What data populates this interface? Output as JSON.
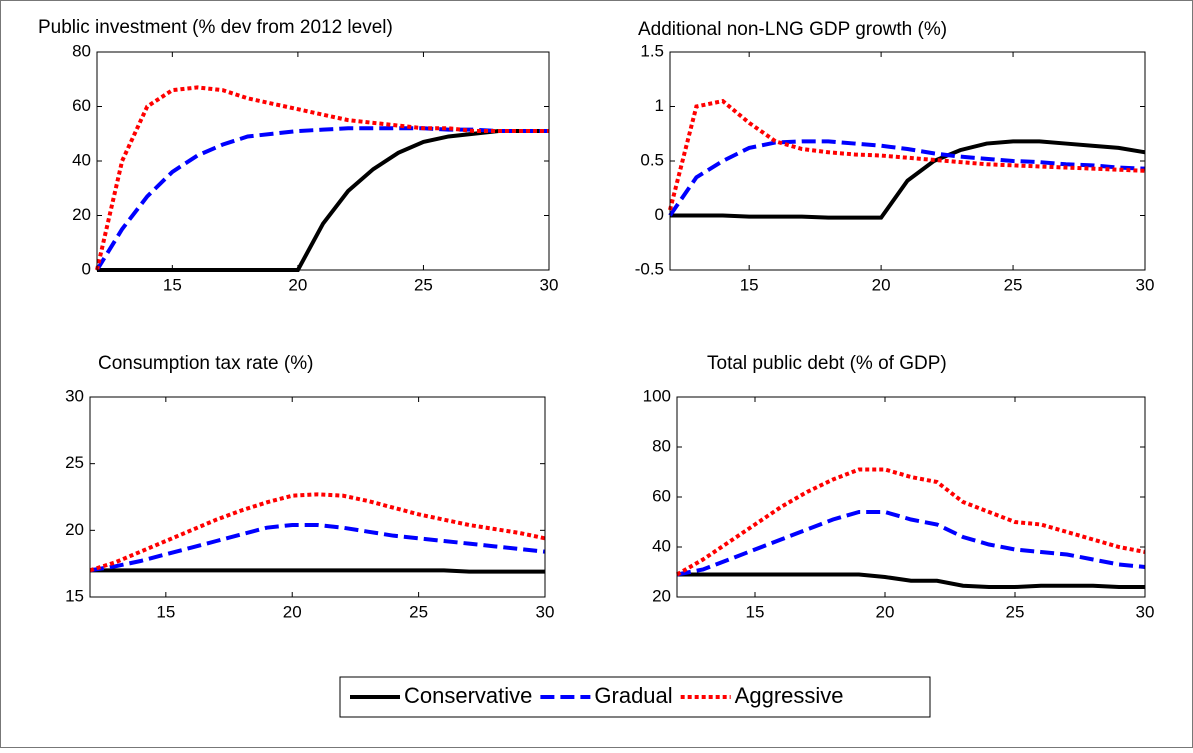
{
  "chart_data": [
    {
      "type": "line",
      "title": "Public investment (% dev from 2012 level)",
      "x": [
        12,
        13,
        14,
        15,
        16,
        17,
        18,
        19,
        20,
        21,
        22,
        23,
        24,
        25,
        26,
        27,
        28,
        29,
        30
      ],
      "xlim": [
        12,
        30
      ],
      "xticks": [
        15,
        20,
        25,
        30
      ],
      "ylim": [
        0,
        80
      ],
      "yticks": [
        0,
        20,
        40,
        60,
        80
      ],
      "series": [
        {
          "name": "Conservative",
          "color": "#000000",
          "style": "solid",
          "values": [
            0,
            0,
            0,
            0,
            0,
            0,
            0,
            0,
            0,
            17,
            29,
            37,
            43,
            47,
            49,
            50,
            51,
            51,
            51
          ]
        },
        {
          "name": "Gradual",
          "color": "#0000ff",
          "style": "dashed",
          "values": [
            0,
            15,
            27,
            36,
            42,
            46,
            49,
            50,
            51,
            51.5,
            52,
            52,
            52,
            52,
            51.5,
            51.5,
            51,
            51,
            51
          ]
        },
        {
          "name": "Aggressive",
          "color": "#ff0000",
          "style": "dotted",
          "values": [
            0,
            40,
            60,
            66,
            67,
            66,
            63,
            61,
            59,
            57,
            55,
            54,
            53,
            52,
            52,
            51,
            51,
            51,
            51
          ]
        }
      ]
    },
    {
      "type": "line",
      "title": "Additional non-LNG GDP growth (%)",
      "x": [
        12,
        13,
        14,
        15,
        16,
        17,
        18,
        19,
        20,
        21,
        22,
        23,
        24,
        25,
        26,
        27,
        28,
        29,
        30
      ],
      "xlim": [
        12,
        30
      ],
      "xticks": [
        15,
        20,
        25,
        30
      ],
      "ylim": [
        -0.5,
        1.5
      ],
      "yticks": [
        -0.5,
        0,
        0.5,
        1,
        1.5
      ],
      "series": [
        {
          "name": "Conservative",
          "color": "#000000",
          "style": "solid",
          "values": [
            0,
            0,
            0,
            -0.01,
            -0.01,
            -0.01,
            -0.02,
            -0.02,
            -0.02,
            0.32,
            0.5,
            0.6,
            0.66,
            0.68,
            0.68,
            0.66,
            0.64,
            0.62,
            0.58
          ]
        },
        {
          "name": "Gradual",
          "color": "#0000ff",
          "style": "dashed",
          "values": [
            0,
            0.35,
            0.5,
            0.62,
            0.67,
            0.68,
            0.68,
            0.66,
            0.64,
            0.61,
            0.57,
            0.54,
            0.52,
            0.5,
            0.49,
            0.47,
            0.46,
            0.44,
            0.43
          ]
        },
        {
          "name": "Aggressive",
          "color": "#ff0000",
          "style": "dotted",
          "values": [
            0.05,
            1.0,
            1.05,
            0.85,
            0.68,
            0.61,
            0.58,
            0.56,
            0.55,
            0.53,
            0.51,
            0.49,
            0.47,
            0.46,
            0.45,
            0.44,
            0.43,
            0.42,
            0.41
          ]
        }
      ]
    },
    {
      "type": "line",
      "title": "Consumption tax rate (%)",
      "x": [
        12,
        13,
        14,
        15,
        16,
        17,
        18,
        19,
        20,
        21,
        22,
        23,
        24,
        25,
        26,
        27,
        28,
        29,
        30
      ],
      "xlim": [
        12,
        30
      ],
      "xticks": [
        15,
        20,
        25,
        30
      ],
      "ylim": [
        15,
        30
      ],
      "yticks": [
        15,
        20,
        25,
        30
      ],
      "series": [
        {
          "name": "Conservative",
          "color": "#000000",
          "style": "solid",
          "values": [
            17,
            17,
            17,
            17,
            17,
            17,
            17,
            17,
            17,
            17,
            17,
            17,
            17,
            17,
            17,
            16.9,
            16.9,
            16.9,
            16.9
          ]
        },
        {
          "name": "Gradual",
          "color": "#0000ff",
          "style": "dashed",
          "values": [
            17,
            17.3,
            17.7,
            18.2,
            18.7,
            19.2,
            19.7,
            20.2,
            20.4,
            20.4,
            20.2,
            19.9,
            19.6,
            19.4,
            19.2,
            19,
            18.8,
            18.6,
            18.4
          ]
        },
        {
          "name": "Aggressive",
          "color": "#ff0000",
          "style": "dotted",
          "values": [
            17,
            17.6,
            18.4,
            19.2,
            20,
            20.8,
            21.5,
            22.1,
            22.6,
            22.7,
            22.6,
            22.2,
            21.7,
            21.2,
            20.8,
            20.4,
            20.1,
            19.8,
            19.4
          ]
        }
      ]
    },
    {
      "type": "line",
      "title": "Total public debt (% of GDP)",
      "x": [
        12,
        13,
        14,
        15,
        16,
        17,
        18,
        19,
        20,
        21,
        22,
        23,
        24,
        25,
        26,
        27,
        28,
        29,
        30
      ],
      "xlim": [
        12,
        30
      ],
      "xticks": [
        15,
        20,
        25,
        30
      ],
      "ylim": [
        20,
        100
      ],
      "yticks": [
        20,
        40,
        60,
        80,
        100
      ],
      "series": [
        {
          "name": "Conservative",
          "color": "#000000",
          "style": "solid",
          "values": [
            29,
            29,
            29,
            29,
            29,
            29,
            29,
            29,
            28,
            26.5,
            26.5,
            24.5,
            24,
            24,
            24.5,
            24.5,
            24.5,
            24,
            24
          ]
        },
        {
          "name": "Gradual",
          "color": "#0000ff",
          "style": "dashed",
          "values": [
            29,
            31,
            35,
            39,
            43,
            47,
            51,
            54,
            54,
            51,
            49,
            44,
            41,
            39,
            38,
            37,
            35,
            33,
            32
          ]
        },
        {
          "name": "Aggressive",
          "color": "#ff0000",
          "style": "dotted",
          "values": [
            29,
            35,
            42,
            49,
            56,
            62,
            67,
            71,
            71,
            68,
            66,
            58,
            54,
            50,
            49,
            46,
            43,
            40,
            38
          ]
        }
      ]
    }
  ]
}
